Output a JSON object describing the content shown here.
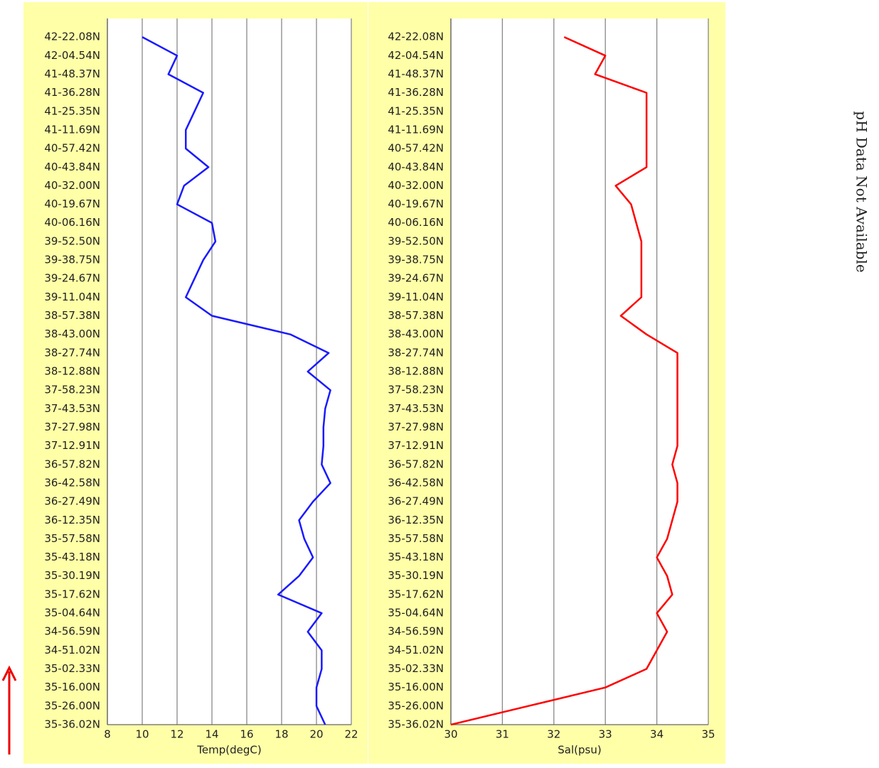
{
  "chart_data": [
    {
      "type": "line",
      "xlabel": "Temp(degC)",
      "color": "#1a1aff",
      "categories": [
        "35-36.02N",
        "35-26.00N",
        "35-16.00N",
        "35-02.33N",
        "34-51.02N",
        "34-56.59N",
        "35-04.64N",
        "35-17.62N",
        "35-30.19N",
        "35-43.18N",
        "35-57.58N",
        "36-12.35N",
        "36-27.49N",
        "36-42.58N",
        "36-57.82N",
        "37-12.91N",
        "37-27.98N",
        "37-43.53N",
        "37-58.23N",
        "38-12.88N",
        "38-27.74N",
        "38-43.00N",
        "38-57.38N",
        "39-11.04N",
        "39-24.67N",
        "39-38.75N",
        "39-52.50N",
        "40-06.16N",
        "40-19.67N",
        "40-32.00N",
        "40-43.84N",
        "40-57.42N",
        "41-11.69N",
        "41-25.35N",
        "41-36.28N",
        "41-48.37N",
        "42-04.54N",
        "42-22.08N"
      ],
      "values": [
        20.5,
        20.0,
        20.0,
        20.3,
        20.3,
        19.5,
        20.3,
        17.8,
        19.0,
        19.8,
        19.3,
        19.0,
        19.8,
        20.8,
        20.3,
        20.4,
        20.4,
        20.5,
        20.8,
        19.5,
        20.7,
        18.5,
        14.0,
        12.5,
        13.0,
        13.5,
        14.2,
        14.0,
        12.0,
        12.4,
        13.8,
        12.5,
        12.5,
        13.0,
        13.5,
        11.5,
        12.0,
        10.0
      ],
      "xlim": [
        8,
        22
      ],
      "xticks": [
        8,
        10,
        12,
        14,
        16,
        18,
        20,
        22
      ],
      "grid": true
    },
    {
      "type": "line",
      "xlabel": "Sal(psu)",
      "color": "#ff0000",
      "categories": [
        "35-36.02N",
        "35-26.00N",
        "35-16.00N",
        "35-02.33N",
        "34-51.02N",
        "34-56.59N",
        "35-04.64N",
        "35-17.62N",
        "35-30.19N",
        "35-43.18N",
        "35-57.58N",
        "36-12.35N",
        "36-27.49N",
        "36-42.58N",
        "36-57.82N",
        "37-12.91N",
        "37-27.98N",
        "37-43.53N",
        "37-58.23N",
        "38-12.88N",
        "38-27.74N",
        "38-43.00N",
        "38-57.38N",
        "39-11.04N",
        "39-24.67N",
        "39-38.75N",
        "39-52.50N",
        "40-06.16N",
        "40-19.67N",
        "40-32.00N",
        "40-43.84N",
        "40-57.42N",
        "41-11.69N",
        "41-25.35N",
        "41-36.28N",
        "41-48.37N",
        "42-04.54N",
        "42-22.08N"
      ],
      "values": [
        30.0,
        31.5,
        33.0,
        33.8,
        34.0,
        34.2,
        34.0,
        34.3,
        34.2,
        34.0,
        34.2,
        34.3,
        34.4,
        34.4,
        34.3,
        34.4,
        34.4,
        34.4,
        34.4,
        34.4,
        34.4,
        33.8,
        33.3,
        33.7,
        33.7,
        33.7,
        33.7,
        33.6,
        33.5,
        33.2,
        33.8,
        33.8,
        33.8,
        33.8,
        33.8,
        32.8,
        33.0,
        32.2
      ],
      "xlim": [
        30,
        35
      ],
      "xticks": [
        30,
        31,
        32,
        33,
        34,
        35
      ],
      "grid": true
    }
  ],
  "annotation": "pH Data Not Available"
}
